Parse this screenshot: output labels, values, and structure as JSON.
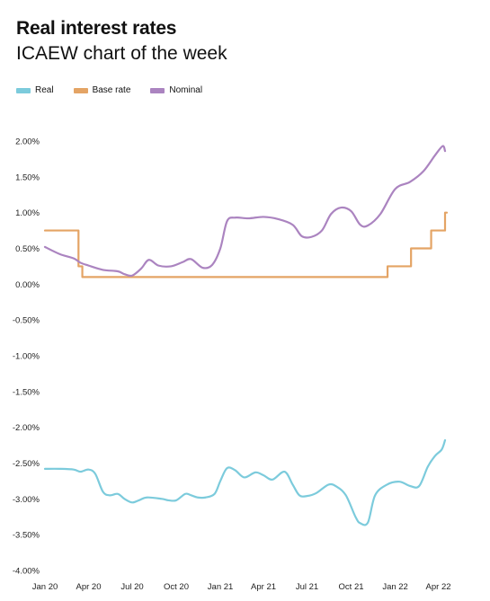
{
  "title": "Real interest rates",
  "subtitle": "ICAEW chart of the week",
  "colors": {
    "Real": "#7ccbdc",
    "Base rate": "#e4a465",
    "Nominal": "#ab84c0"
  },
  "chart_data": {
    "type": "line",
    "legend_position": "top-left",
    "grid": false,
    "xlim": [
      "2020-01-01",
      "2022-04-30"
    ],
    "ylim": [
      -4.0,
      2.0
    ],
    "y_ticks": [
      2.0,
      1.5,
      1.0,
      0.5,
      0.0,
      -0.5,
      -1.0,
      -1.5,
      -2.0,
      -2.5,
      -3.0,
      -3.5,
      -4.0
    ],
    "y_tick_labels": [
      "2.00%",
      "1.50%",
      "1.00%",
      "0.50%",
      "0.00%",
      "-0.50%",
      "-1.00%",
      "-1.50%",
      "-2.00%",
      "-2.50%",
      "-3.00%",
      "-3.50%",
      "-4.00%"
    ],
    "x_ticks": [
      "2020-01-01",
      "2020-04-01",
      "2020-07-01",
      "2020-10-01",
      "2021-01-01",
      "2021-04-01",
      "2021-07-01",
      "2021-10-01",
      "2022-01-01",
      "2022-04-01"
    ],
    "x_tick_labels": [
      "Jan 20",
      "Apr 20",
      "Jul 20",
      "Oct 20",
      "Jan 21",
      "Apr 21",
      "Jul 21",
      "Oct 21",
      "Jan 22",
      "Apr 22"
    ],
    "series": [
      {
        "name": "Real",
        "step": false,
        "points": [
          [
            "2020-01-01",
            -2.58
          ],
          [
            "2020-02-01",
            -2.58
          ],
          [
            "2020-03-01",
            -2.59
          ],
          [
            "2020-03-15",
            -2.62
          ],
          [
            "2020-04-01",
            -2.59
          ],
          [
            "2020-04-15",
            -2.65
          ],
          [
            "2020-05-01",
            -2.9
          ],
          [
            "2020-05-15",
            -2.95
          ],
          [
            "2020-06-01",
            -2.93
          ],
          [
            "2020-06-15",
            -3.0
          ],
          [
            "2020-07-01",
            -3.05
          ],
          [
            "2020-07-15",
            -3.02
          ],
          [
            "2020-08-01",
            -2.98
          ],
          [
            "2020-09-01",
            -3.0
          ],
          [
            "2020-09-15",
            -3.02
          ],
          [
            "2020-10-01",
            -3.02
          ],
          [
            "2020-10-20",
            -2.93
          ],
          [
            "2020-11-01",
            -2.95
          ],
          [
            "2020-11-15",
            -2.98
          ],
          [
            "2020-12-01",
            -2.98
          ],
          [
            "2020-12-20",
            -2.93
          ],
          [
            "2021-01-01",
            -2.75
          ],
          [
            "2021-01-15",
            -2.57
          ],
          [
            "2021-02-01",
            -2.6
          ],
          [
            "2021-02-20",
            -2.7
          ],
          [
            "2021-03-15",
            -2.63
          ],
          [
            "2021-04-01",
            -2.67
          ],
          [
            "2021-04-20",
            -2.73
          ],
          [
            "2021-05-15",
            -2.62
          ],
          [
            "2021-06-01",
            -2.8
          ],
          [
            "2021-06-15",
            -2.95
          ],
          [
            "2021-07-01",
            -2.96
          ],
          [
            "2021-07-20",
            -2.92
          ],
          [
            "2021-08-15",
            -2.8
          ],
          [
            "2021-09-01",
            -2.83
          ],
          [
            "2021-09-20",
            -2.95
          ],
          [
            "2021-10-10",
            -3.25
          ],
          [
            "2021-10-20",
            -3.34
          ],
          [
            "2021-11-05",
            -3.33
          ],
          [
            "2021-11-20",
            -2.95
          ],
          [
            "2021-12-15",
            -2.8
          ],
          [
            "2022-01-10",
            -2.76
          ],
          [
            "2022-02-01",
            -2.82
          ],
          [
            "2022-02-20",
            -2.82
          ],
          [
            "2022-03-10",
            -2.55
          ],
          [
            "2022-03-25",
            -2.4
          ],
          [
            "2022-04-08",
            -2.31
          ],
          [
            "2022-04-15",
            -2.18
          ]
        ]
      },
      {
        "name": "Base rate",
        "step": true,
        "points": [
          [
            "2020-01-01",
            0.75
          ],
          [
            "2020-03-11",
            0.25
          ],
          [
            "2020-03-19",
            0.1
          ],
          [
            "2021-12-16",
            0.25
          ],
          [
            "2022-02-03",
            0.5
          ],
          [
            "2022-03-17",
            0.75
          ],
          [
            "2022-04-15",
            1.0
          ]
        ]
      },
      {
        "name": "Nominal",
        "step": false,
        "points": [
          [
            "2020-01-01",
            0.52
          ],
          [
            "2020-02-01",
            0.42
          ],
          [
            "2020-03-01",
            0.36
          ],
          [
            "2020-03-15",
            0.3
          ],
          [
            "2020-04-01",
            0.26
          ],
          [
            "2020-05-01",
            0.2
          ],
          [
            "2020-06-01",
            0.18
          ],
          [
            "2020-06-15",
            0.14
          ],
          [
            "2020-07-01",
            0.12
          ],
          [
            "2020-07-20",
            0.22
          ],
          [
            "2020-08-05",
            0.34
          ],
          [
            "2020-08-25",
            0.26
          ],
          [
            "2020-09-20",
            0.25
          ],
          [
            "2020-10-15",
            0.31
          ],
          [
            "2020-11-01",
            0.35
          ],
          [
            "2020-11-25",
            0.23
          ],
          [
            "2020-12-15",
            0.27
          ],
          [
            "2021-01-01",
            0.5
          ],
          [
            "2021-01-15",
            0.88
          ],
          [
            "2021-02-01",
            0.93
          ],
          [
            "2021-03-01",
            0.92
          ],
          [
            "2021-04-01",
            0.94
          ],
          [
            "2021-05-01",
            0.91
          ],
          [
            "2021-06-01",
            0.83
          ],
          [
            "2021-06-20",
            0.67
          ],
          [
            "2021-07-10",
            0.66
          ],
          [
            "2021-08-01",
            0.75
          ],
          [
            "2021-08-20",
            0.98
          ],
          [
            "2021-09-10",
            1.07
          ],
          [
            "2021-10-01",
            1.02
          ],
          [
            "2021-10-20",
            0.83
          ],
          [
            "2021-11-05",
            0.82
          ],
          [
            "2021-12-01",
            0.98
          ],
          [
            "2022-01-01",
            1.33
          ],
          [
            "2022-02-01",
            1.43
          ],
          [
            "2022-03-01",
            1.58
          ],
          [
            "2022-03-25",
            1.8
          ],
          [
            "2022-04-10",
            1.93
          ],
          [
            "2022-04-15",
            1.86
          ]
        ]
      }
    ]
  }
}
